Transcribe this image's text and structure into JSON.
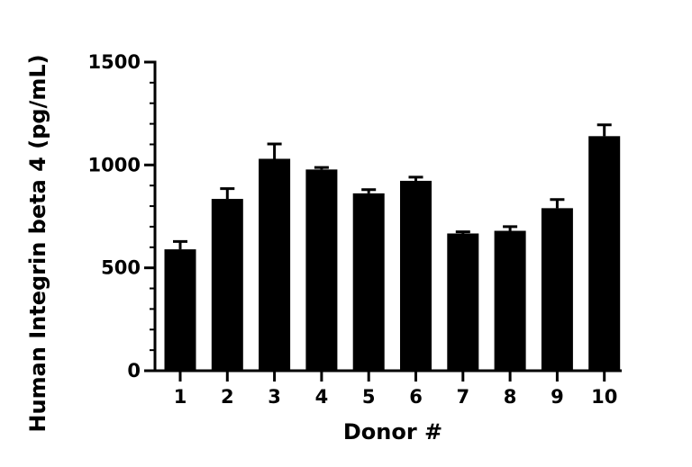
{
  "chart_data": {
    "type": "bar",
    "title": "",
    "xlabel": "Donor #",
    "ylabel": "Human Integrin beta 4 (pg/mL)",
    "categories": [
      "1",
      "2",
      "3",
      "4",
      "5",
      "6",
      "7",
      "8",
      "9",
      "10"
    ],
    "values": [
      590,
      835,
      1030,
      978,
      862,
      923,
      667,
      680,
      790,
      1140
    ],
    "error": [
      38,
      50,
      72,
      10,
      18,
      18,
      8,
      20,
      42,
      55
    ],
    "ylim": [
      0,
      1500
    ],
    "yticks": [
      "0",
      "500",
      "1000",
      "1500"
    ],
    "ytick_values": [
      0,
      500,
      1000,
      1500
    ],
    "y_minor_step": 100,
    "bar_color": "#000000",
    "grid": false,
    "legend": "none"
  }
}
